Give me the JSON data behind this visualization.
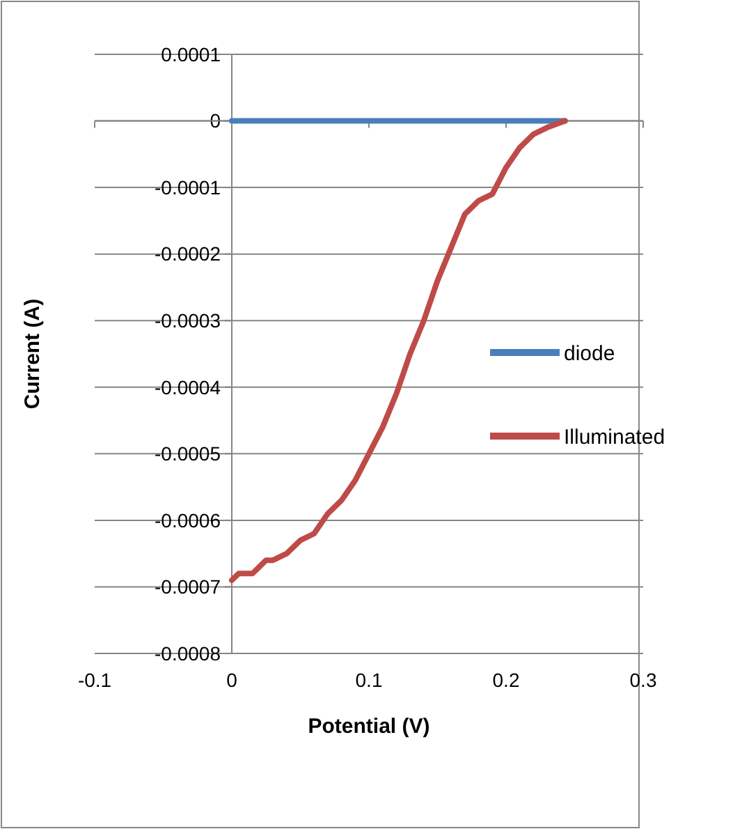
{
  "chart_data": {
    "type": "line",
    "xlabel": "Potential (V)",
    "ylabel": "Current (A)",
    "xlim": [
      -0.1,
      0.3
    ],
    "xticks": [
      -0.1,
      0,
      0.1,
      0.2,
      0.3
    ],
    "ylim": [
      -0.0008,
      0.0001
    ],
    "yticks": [
      {
        "value": -0.0008,
        "label": "-0.0008"
      },
      {
        "value": -0.0007,
        "label": "-0.0007"
      },
      {
        "value": -0.0006,
        "label": "-0.0006"
      },
      {
        "value": -0.0005,
        "label": "-0.0005"
      },
      {
        "value": -0.0004,
        "label": "-0.0004"
      },
      {
        "value": -0.0003,
        "label": "-0.0003"
      },
      {
        "value": -0.0002,
        "label": "-0.0002"
      },
      {
        "value": -0.0001,
        "label": "-0.0001"
      },
      {
        "value": 0,
        "label": "0"
      },
      {
        "value": 0.0001,
        "label": "0.0001"
      }
    ],
    "grid": "y",
    "legend": "right",
    "marker": "none",
    "line_style": "solid",
    "series": [
      {
        "name": "diode",
        "color": "#4a7ebb",
        "x": [
          0,
          0.05,
          0.1,
          0.15,
          0.2,
          0.243
        ],
        "values": [
          0,
          0,
          0,
          0,
          0,
          0
        ]
      },
      {
        "name": "Illuminated",
        "color": "#be4b48",
        "x": [
          0,
          0.005,
          0.015,
          0.02,
          0.025,
          0.03,
          0.04,
          0.05,
          0.06,
          0.07,
          0.08,
          0.09,
          0.1,
          0.11,
          0.12,
          0.13,
          0.14,
          0.15,
          0.16,
          0.17,
          0.18,
          0.19,
          0.2,
          0.21,
          0.22,
          0.23,
          0.243
        ],
        "values": [
          -0.00069,
          -0.00068,
          -0.00068,
          -0.00067,
          -0.00066,
          -0.00066,
          -0.00065,
          -0.00063,
          -0.00062,
          -0.00059,
          -0.00057,
          -0.00054,
          -0.0005,
          -0.00046,
          -0.00041,
          -0.00035,
          -0.0003,
          -0.00024,
          -0.00019,
          -0.00014,
          -0.00012,
          -0.00011,
          -7e-05,
          -4e-05,
          -2e-05,
          -1e-05,
          0
        ]
      }
    ]
  }
}
